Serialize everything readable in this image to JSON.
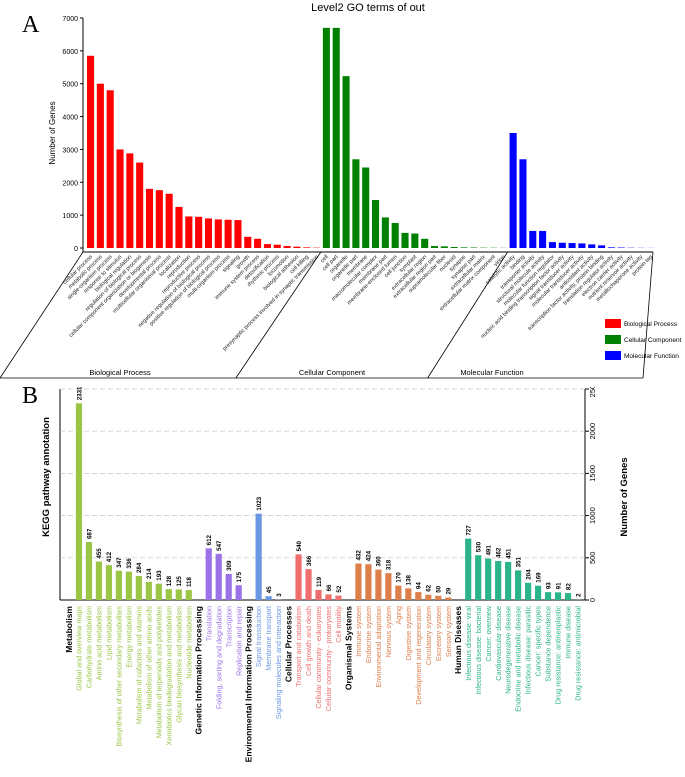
{
  "figure": {
    "label_a": "A",
    "label_b": "B"
  },
  "chart_data": [
    {
      "type": "bar",
      "title": "Level2 GO terms of out",
      "ylabel": "Number of Genes",
      "ylim": [
        0,
        7000
      ],
      "yticks": [
        0,
        1000,
        2000,
        3000,
        4000,
        5000,
        6000,
        7000
      ],
      "legend": {
        "placement": "right"
      },
      "series": [
        {
          "name": "Biological Process",
          "color": "#ff0000",
          "categories": [
            "cellular process",
            "metabolic process",
            "single-organism process",
            "response to stimulus",
            "biological regulation",
            "regulation of biological process",
            "cellular component organization or biogenesis",
            "developmental process",
            "multicellular organismal process",
            "localization",
            "reproduction",
            "reproductive process",
            "negative regulation of biological process",
            "positive regulation of biological process",
            "multi-organism process",
            "signaling",
            "growth",
            "immune system process",
            "detoxification",
            "rhythmic process",
            "locomotion",
            "biological adhesion",
            "cell killing",
            "presynaptic process involved in synaptic transmission"
          ],
          "values": [
            5850,
            5000,
            4800,
            3000,
            2880,
            2600,
            1800,
            1760,
            1650,
            1250,
            960,
            950,
            900,
            870,
            860,
            850,
            340,
            280,
            120,
            100,
            60,
            40,
            20,
            10
          ]
        },
        {
          "name": "Cellular Component",
          "color": "#008000",
          "categories": [
            "cell",
            "cell part",
            "organelle",
            "organelle part",
            "membrane",
            "macromolecular complex",
            "membrane part",
            "membrane-enclosed lumen",
            "cell junction",
            "symplast",
            "extracellular region",
            "extracellular region part",
            "supramolecular fiber",
            "nucleoid",
            "synapse",
            "synapse part",
            "extracellular matrix",
            "extracellular matrix component",
            "virion"
          ],
          "values": [
            6700,
            6700,
            5230,
            2700,
            2450,
            1460,
            930,
            760,
            460,
            440,
            280,
            60,
            50,
            30,
            20,
            15,
            10,
            8,
            5
          ]
        },
        {
          "name": "Molecular Function",
          "color": "#0000ff",
          "categories": [
            "catalytic activity",
            "binding",
            "transporter activity",
            "structural molecule activity",
            "molecular function regulator",
            "nucleic acid binding transcription factor activity",
            "signal transducer activity",
            "molecular transducer activity",
            "antioxidant activity",
            "transcription factor activity, protein binding",
            "translation regulator activity",
            "electron carrier activity",
            "nutrient reservoir activity",
            "metallochaperone activity",
            "protein tag"
          ],
          "values": [
            3500,
            2700,
            520,
            520,
            180,
            160,
            150,
            140,
            110,
            80,
            20,
            15,
            8,
            5,
            3
          ]
        }
      ],
      "group_labels": [
        "Biological Process",
        "Cellular Component",
        "Molecular Function"
      ]
    },
    {
      "type": "bar",
      "ylabel_left": "KEGG pathway annotation",
      "ylabel_right": "Number of Genes",
      "ylim": [
        0,
        2500
      ],
      "yticks": [
        0,
        500,
        1000,
        1500,
        2000,
        2500
      ],
      "groups": [
        {
          "name": "Metabolism",
          "color": "#9bc545",
          "categories": [
            "Global and overview maps",
            "Carbohydrate metabolism",
            "Amino acid metabolism",
            "Lipid metabolism",
            "Biosynthesis of other secondary metabolites",
            "Energy metabolism",
            "Metabolism of cofactors and vitamins",
            "Metabolism of other amino acids",
            "Metabolism of terpenoids and polyketides",
            "Xenobiotics biodegradation and metabolism",
            "Glycan biosynthesis and metabolism",
            "Nucleotide metabolism"
          ],
          "values": [
            2331,
            687,
            455,
            412,
            347,
            336,
            284,
            214,
            193,
            128,
            125,
            118
          ]
        },
        {
          "name": "Genetic Information Processing",
          "color": "#9b72e8",
          "categories": [
            "Translation",
            "Folding, sorting and degradation",
            "Transcription",
            "Replication and repair"
          ],
          "values": [
            612,
            547,
            309,
            175
          ]
        },
        {
          "name": "Environmental Information Processing",
          "color": "#6b96e4",
          "categories": [
            "Signal transduction",
            "Membrane transport",
            "Signaling molecules and interaction"
          ],
          "values": [
            1023,
            45,
            3
          ]
        },
        {
          "name": "Cellular Processes",
          "color": "#ee6e6e",
          "categories": [
            "Transport and catabolism",
            "Cell growth and death",
            "Cellular community - eukaryotes",
            "Cellular community - prokaryotes",
            "Cell motility"
          ],
          "values": [
            540,
            366,
            119,
            66,
            52
          ]
        },
        {
          "name": "Organismal Systems",
          "color": "#dd7f4b",
          "categories": [
            "Immune system",
            "Endocrine system",
            "Environmental adaptation",
            "Nervous system",
            "Aging",
            "Digestive system",
            "Development and regeneration",
            "Circulatory system",
            "Excretory system",
            "Sensory system"
          ],
          "values": [
            432,
            424,
            360,
            318,
            170,
            138,
            94,
            62,
            50,
            29
          ]
        },
        {
          "name": "Human Diseases",
          "color": "#2bb38a",
          "categories": [
            "Infectious disease: viral",
            "Infectious disease: bacterial",
            "Cancer: overview",
            "Cardiovascular disease",
            "Neurodegenerative disease",
            "Endocrine and metabolic disease",
            "Infectious disease: parasitic",
            "Cancer: specific types",
            "Substance dependence",
            "Drug resistance: antineoplastic",
            "Immune disease",
            "Drug resistance: antimicrobial"
          ],
          "values": [
            727,
            530,
            491,
            462,
            451,
            351,
            204,
            169,
            93,
            91,
            82,
            2
          ]
        }
      ]
    }
  ]
}
